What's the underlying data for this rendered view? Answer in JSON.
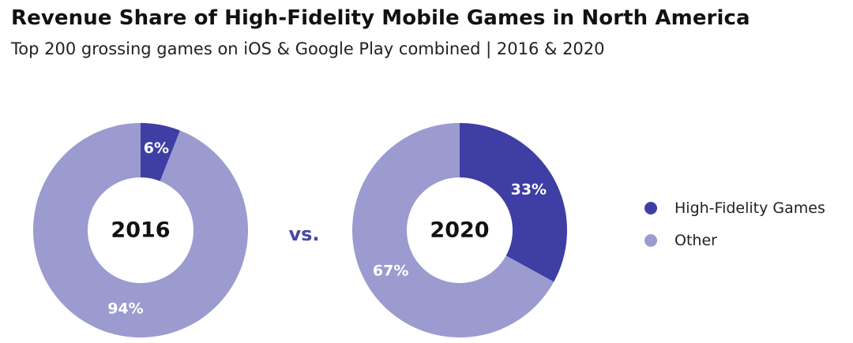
{
  "title": "Revenue Share of High-Fidelity Mobile Games in North America",
  "subtitle": "Top 200 grossing games on iOS & Google Play combined | 2016 & 2020",
  "vs_label": "vs.",
  "colors": {
    "high_fidelity": "#3f3ea5",
    "other": "#9b9bd0",
    "vs": "#4a46a8"
  },
  "chart_data": [
    {
      "type": "pie",
      "center_label": "2016",
      "slices": [
        {
          "name": "High-Fidelity Games",
          "value": 6,
          "label": "6%"
        },
        {
          "name": "Other",
          "value": 94,
          "label": "94%"
        }
      ]
    },
    {
      "type": "pie",
      "center_label": "2020",
      "slices": [
        {
          "name": "High-Fidelity Games",
          "value": 33,
          "label": "33%"
        },
        {
          "name": "Other",
          "value": 67,
          "label": "67%"
        }
      ]
    }
  ],
  "legend": [
    {
      "label": "High-Fidelity Games",
      "color": "#3f3ea5"
    },
    {
      "label": "Other",
      "color": "#9b9bd0"
    }
  ]
}
